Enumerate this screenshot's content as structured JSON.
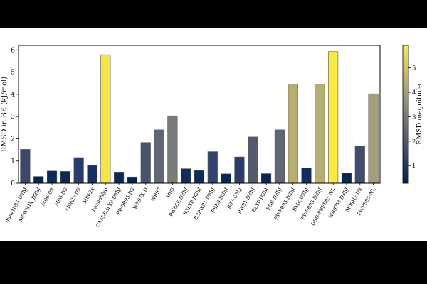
{
  "chart_data": {
    "type": "bar",
    "ylabel": "RMSD in BE (kJ/mol)",
    "ylim": [
      0,
      6.2
    ],
    "yticks": [
      0,
      1,
      2,
      3,
      4,
      5,
      6
    ],
    "grid": false,
    "colormap": "cividis",
    "colorbar": {
      "label": "RMSD magnitude",
      "range": [
        0.28,
        5.92
      ],
      "ticks": [
        1,
        2,
        3,
        4,
        5
      ]
    },
    "categories": [
      "mpw1b95-D3BJ",
      "MPWB1k_D3BJ",
      "M06-D3",
      "M06-D3",
      "M062x-D3",
      "M062x",
      "bhandhlyp",
      "CAM-B3LYP-D3BJ",
      "PW6B95-D3",
      "WB97X-D",
      "WB97",
      "M05",
      "PW86K-D3BJ",
      "B3LYP-D3BJ",
      "B3PW91-D3BJ",
      "PBE0-D3BJ",
      "B97-D3bj",
      "PW91-D3BJ",
      "BLYP-D3BJ",
      "PBE-D3BJ",
      "PWPB95-D3BJ",
      "BMK-D3BJ",
      "PWPB95-D3BJ",
      "DSD-PBEB95-NL",
      "WB97M-D3BJ",
      "M08Hx-D3",
      "PWPB95-NL"
    ],
    "values": [
      1.52,
      0.3,
      0.55,
      0.53,
      1.15,
      0.8,
      5.78,
      0.5,
      0.28,
      1.83,
      2.4,
      3.03,
      0.65,
      0.57,
      1.42,
      0.42,
      1.18,
      2.08,
      0.43,
      2.4,
      4.45,
      0.68,
      4.45,
      5.92,
      0.45,
      1.67,
      4.02
    ]
  }
}
